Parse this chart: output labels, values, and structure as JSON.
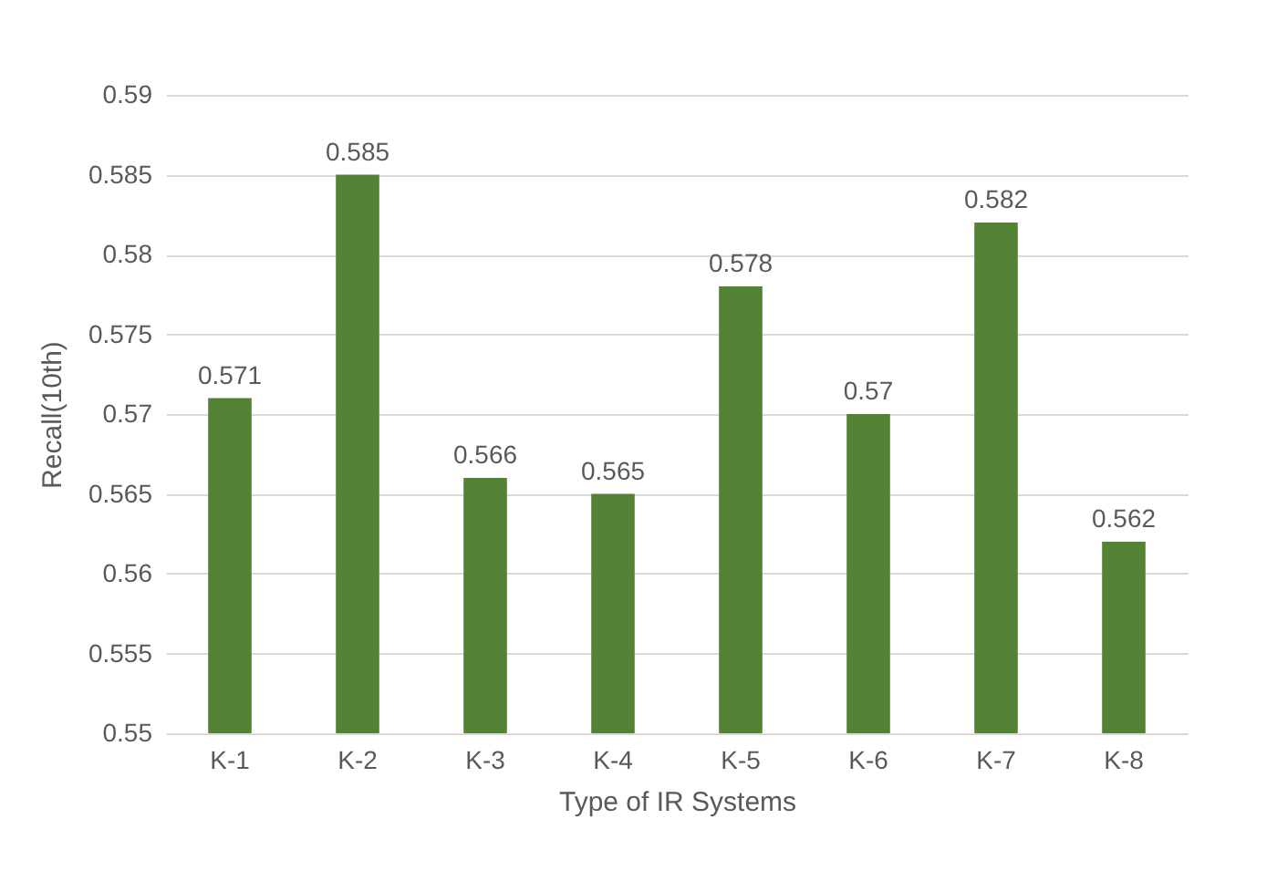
{
  "chart_data": {
    "type": "bar",
    "xlabel": "Type of IR Systems",
    "ylabel": "Recall(10th)",
    "categories": [
      "K-1",
      "K-2",
      "K-3",
      "K-4",
      "K-5",
      "K-6",
      "K-7",
      "K-8"
    ],
    "values": [
      0.571,
      0.585,
      0.566,
      0.565,
      0.578,
      0.57,
      0.582,
      0.562
    ],
    "color": "#548235",
    "ylim": [
      0.55,
      0.59
    ],
    "yticks": [
      0.55,
      0.555,
      0.56,
      0.565,
      0.57,
      0.575,
      0.58,
      0.585,
      0.59
    ],
    "grid": "y",
    "data_labels": true
  }
}
